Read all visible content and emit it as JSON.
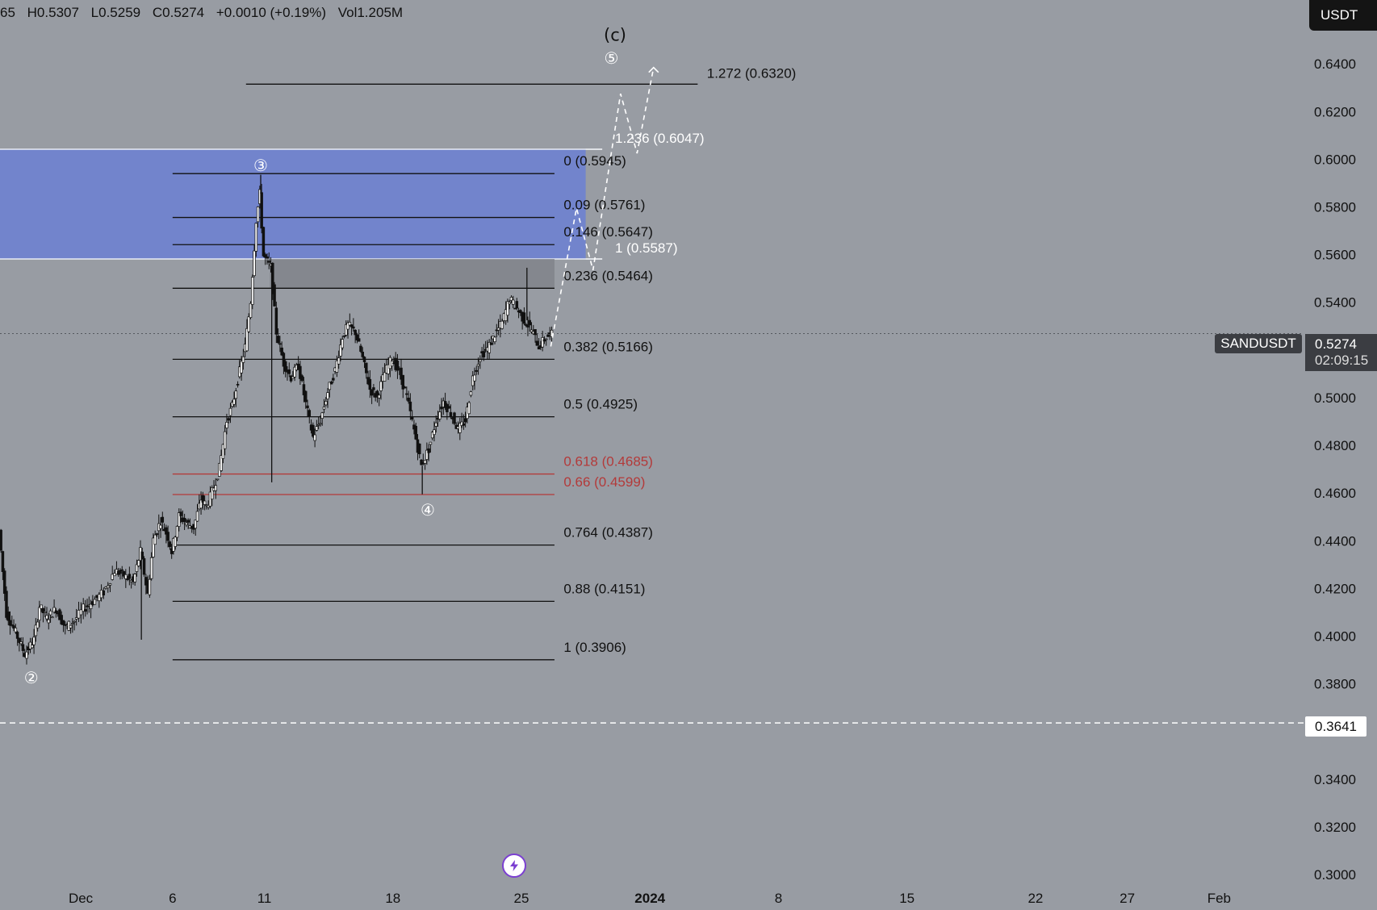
{
  "header": {
    "o_fragment": "65",
    "high": "H0.5307",
    "low": "L0.5259",
    "close": "C0.5274",
    "change": "+0.0010 (+0.19%)",
    "volume": "Vol1.205M",
    "currency": "USDT"
  },
  "symbol_label": "SANDUSDT",
  "last_price": "0.5274",
  "countdown": "02:09:15",
  "support_price": "0.3641",
  "colors": {
    "background": "#989ca3",
    "zone": "#6b80d4",
    "fib_line": "#111111",
    "fib_red": "#b33a3a",
    "projection": "#ffffff"
  },
  "chart_data": {
    "type": "candlestick",
    "symbol": "SANDUSDT",
    "y_axis": {
      "ticks": [
        "0.6400",
        "0.6200",
        "0.6000",
        "0.5800",
        "0.5600",
        "0.5400",
        "0.5000",
        "0.4800",
        "0.4600",
        "0.4400",
        "0.4200",
        "0.4000",
        "0.3800",
        "0.3400",
        "0.3200",
        "0.3000"
      ],
      "ylim": [
        0.2985,
        0.6673
      ]
    },
    "x_axis": {
      "ticks": [
        {
          "label": "Dec",
          "day": -2
        },
        {
          "label": "6",
          "day": 3
        },
        {
          "label": "11",
          "day": 8
        },
        {
          "label": "18",
          "day": 15
        },
        {
          "label": "25",
          "day": 22
        },
        {
          "label": "2024",
          "day": 29
        },
        {
          "label": "8",
          "day": 36
        },
        {
          "label": "15",
          "day": 43
        },
        {
          "label": "22",
          "day": 50
        },
        {
          "label": "27",
          "day": 55
        },
        {
          "label": "Feb",
          "day": 60
        }
      ],
      "xlim": [
        -6.4,
        64.6
      ]
    },
    "price_path": [
      [
        -6.4,
        0.445
      ],
      [
        -6.0,
        0.41
      ],
      [
        -5.5,
        0.402
      ],
      [
        -5.0,
        0.393
      ],
      [
        -4.5,
        0.399
      ],
      [
        -4.2,
        0.413
      ],
      [
        -3.8,
        0.408
      ],
      [
        -3.3,
        0.412
      ],
      [
        -2.8,
        0.404
      ],
      [
        -2.3,
        0.407
      ],
      [
        -1.8,
        0.412
      ],
      [
        -1.3,
        0.415
      ],
      [
        -0.7,
        0.419
      ],
      [
        -0.1,
        0.428
      ],
      [
        0.4,
        0.426
      ],
      [
        0.9,
        0.423
      ],
      [
        1.3,
        0.436
      ],
      [
        1.7,
        0.418
      ],
      [
        2.0,
        0.441
      ],
      [
        2.4,
        0.449
      ],
      [
        2.8,
        0.442
      ],
      [
        3.0,
        0.436
      ],
      [
        3.4,
        0.451
      ],
      [
        3.8,
        0.448
      ],
      [
        4.2,
        0.446
      ],
      [
        4.6,
        0.458
      ],
      [
        4.9,
        0.455
      ],
      [
        5.3,
        0.463
      ],
      [
        5.6,
        0.471
      ],
      [
        6.0,
        0.491
      ],
      [
        6.3,
        0.497
      ],
      [
        6.6,
        0.508
      ],
      [
        7.0,
        0.522
      ],
      [
        7.3,
        0.541
      ],
      [
        7.6,
        0.575
      ],
      [
        7.8,
        0.586
      ],
      [
        8.0,
        0.56
      ],
      [
        8.4,
        0.555
      ],
      [
        8.7,
        0.528
      ],
      [
        9.1,
        0.515
      ],
      [
        9.5,
        0.509
      ],
      [
        9.9,
        0.514
      ],
      [
        10.3,
        0.498
      ],
      [
        10.7,
        0.484
      ],
      [
        11.1,
        0.491
      ],
      [
        11.5,
        0.503
      ],
      [
        11.9,
        0.512
      ],
      [
        12.3,
        0.526
      ],
      [
        12.6,
        0.531
      ],
      [
        13.0,
        0.528
      ],
      [
        13.4,
        0.517
      ],
      [
        13.8,
        0.504
      ],
      [
        14.2,
        0.501
      ],
      [
        14.6,
        0.511
      ],
      [
        15.0,
        0.517
      ],
      [
        15.4,
        0.511
      ],
      [
        15.8,
        0.501
      ],
      [
        16.2,
        0.487
      ],
      [
        16.6,
        0.472
      ],
      [
        17.0,
        0.479
      ],
      [
        17.4,
        0.491
      ],
      [
        17.8,
        0.499
      ],
      [
        18.2,
        0.494
      ],
      [
        18.6,
        0.487
      ],
      [
        19.0,
        0.491
      ],
      [
        19.4,
        0.509
      ],
      [
        19.8,
        0.518
      ],
      [
        20.2,
        0.521
      ],
      [
        20.6,
        0.527
      ],
      [
        21.0,
        0.532
      ],
      [
        21.4,
        0.542
      ],
      [
        21.8,
        0.538
      ],
      [
        22.2,
        0.533
      ],
      [
        22.6,
        0.529
      ],
      [
        23.0,
        0.522
      ],
      [
        23.4,
        0.526
      ],
      [
        23.7,
        0.527
      ]
    ],
    "wicks": [
      {
        "day": 1.3,
        "low": 0.399
      },
      {
        "day": 7.8,
        "high": 0.594
      },
      {
        "day": 8.4,
        "low": 0.465
      },
      {
        "day": 16.6,
        "low": 0.46
      },
      {
        "day": 22.3,
        "high": 0.555
      }
    ],
    "fib_retracement": [
      {
        "label": "0 (0.5945)",
        "price": 0.5945
      },
      {
        "label": "0.09 (0.5761)",
        "price": 0.5761
      },
      {
        "label": "0.146 (0.5647)",
        "price": 0.5647
      },
      {
        "label": "0.236 (0.5464)",
        "price": 0.5464
      },
      {
        "label": "0.382 (0.5166)",
        "price": 0.5166
      },
      {
        "label": "0.5 (0.4925)",
        "price": 0.4925
      },
      {
        "label": "0.618 (0.4685)",
        "price": 0.4685,
        "highlight": true
      },
      {
        "label": "0.66 (0.4599)",
        "price": 0.4599,
        "highlight": true
      },
      {
        "label": "0.764 (0.4387)",
        "price": 0.4387
      },
      {
        "label": "0.88 (0.4151)",
        "price": 0.4151
      },
      {
        "label": "1 (0.3906)",
        "price": 0.3906
      }
    ],
    "fib_extension": [
      {
        "label": "1.272 (0.6320)",
        "price": 0.632
      },
      {
        "label": "1.236 (0.6047)",
        "price": 0.6047
      },
      {
        "label": "1 (0.5587)",
        "price": 0.5587
      }
    ],
    "zone": {
      "top": 0.6047,
      "bottom": 0.5587
    },
    "gray_zone": {
      "top": 0.5587,
      "bottom": 0.5464
    },
    "wave_labels": [
      {
        "text": "②",
        "day": -4.7,
        "price": 0.3826
      },
      {
        "text": "③",
        "day": 7.8,
        "price": 0.5975
      },
      {
        "text": "④",
        "day": 16.9,
        "price": 0.453
      },
      {
        "text": "⑤",
        "day": 26.9,
        "price": 0.6424
      },
      {
        "text": "(c)",
        "day": 27.1,
        "price": 0.6523
      }
    ],
    "projection_path": [
      [
        23.6,
        0.522
      ],
      [
        25.0,
        0.58
      ],
      [
        25.9,
        0.554
      ],
      [
        27.4,
        0.628
      ],
      [
        28.3,
        0.603
      ],
      [
        29.2,
        0.639
      ]
    ],
    "current_price": 0.5274,
    "support": 0.3641
  }
}
